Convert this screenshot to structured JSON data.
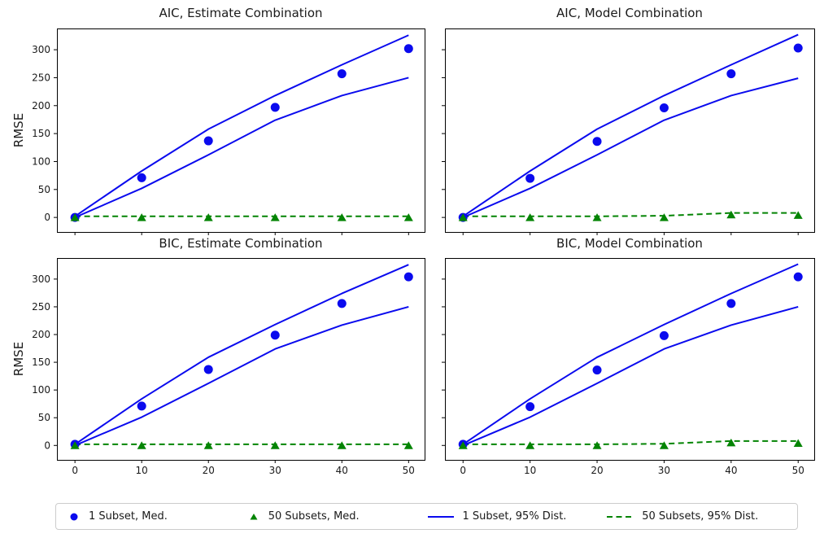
{
  "figure": {
    "background": "#ffffff"
  },
  "colors": {
    "blue": "#0a0aee",
    "green": "#048404",
    "axis": "#000000",
    "text": "#1a1a1a",
    "legend_border": "#cccccc"
  },
  "legend": {
    "position": "bottom-outside",
    "items": [
      {
        "marker": "circle",
        "color": "blue",
        "label": "1 Subset, Med."
      },
      {
        "marker": "triangle",
        "color": "green",
        "label": "50 Subsets, Med."
      },
      {
        "marker": "solid-line",
        "color": "blue",
        "label": "1 Subset, 95% Dist."
      },
      {
        "marker": "dashed-line",
        "color": "green",
        "label": "50 Subsets, 95% Dist."
      }
    ]
  },
  "chart_data": [
    {
      "type": "line",
      "title": "AIC, Estimate Combination",
      "position": "top-left",
      "ylabel": "RMSE",
      "x": [
        0,
        10,
        20,
        30,
        40,
        50
      ],
      "xticks": [
        0,
        10,
        20,
        30,
        40,
        50
      ],
      "yticks": [
        0,
        50,
        100,
        150,
        200,
        250,
        300
      ],
      "xlim": [
        -2.7,
        52.4
      ],
      "ylim": [
        -26,
        338
      ],
      "grid": false,
      "show_xticklabels": false,
      "show_yticklabels": true,
      "series": [
        {
          "name": "50 Subsets, 95% Dist.",
          "type": "line",
          "style": "dashed",
          "color": "green",
          "values": [
            2,
            2,
            2,
            2,
            2,
            2
          ]
        },
        {
          "name": "1 Subset, 95% Dist. (lower)",
          "type": "line",
          "style": "solid",
          "color": "blue",
          "values": [
            0,
            52,
            112,
            174,
            218,
            250
          ]
        },
        {
          "name": "1 Subset, 95% Dist. (upper)",
          "type": "line",
          "style": "solid",
          "color": "blue",
          "values": [
            2,
            83,
            158,
            218,
            273,
            326
          ]
        },
        {
          "name": "1 Subset, Med.",
          "type": "scatter",
          "marker": "circle",
          "color": "blue",
          "values": [
            0,
            71,
            137,
            197,
            257,
            302
          ]
        },
        {
          "name": "50 Subsets, Med.",
          "type": "scatter",
          "marker": "triangle",
          "color": "green",
          "values": [
            0,
            0,
            0,
            0,
            0,
            0
          ]
        }
      ]
    },
    {
      "type": "line",
      "title": "AIC, Model Combination",
      "position": "top-right",
      "ylabel": "",
      "x": [
        0,
        10,
        20,
        30,
        40,
        50
      ],
      "xticks": [
        0,
        10,
        20,
        30,
        40,
        50
      ],
      "yticks": [
        0,
        50,
        100,
        150,
        200,
        250,
        300
      ],
      "xlim": [
        -2.7,
        52.4
      ],
      "ylim": [
        -26,
        338
      ],
      "grid": false,
      "show_xticklabels": false,
      "show_yticklabels": false,
      "series": [
        {
          "name": "50 Subsets, 95% Dist.",
          "type": "line",
          "style": "dashed",
          "color": "green",
          "values": [
            2,
            2,
            2,
            3,
            8,
            8
          ]
        },
        {
          "name": "1 Subset, 95% Dist. (lower)",
          "type": "line",
          "style": "solid",
          "color": "blue",
          "values": [
            0,
            52,
            112,
            174,
            218,
            249
          ]
        },
        {
          "name": "1 Subset, 95% Dist. (upper)",
          "type": "line",
          "style": "solid",
          "color": "blue",
          "values": [
            2,
            83,
            158,
            218,
            273,
            327
          ]
        },
        {
          "name": "1 Subset, Med.",
          "type": "scatter",
          "marker": "circle",
          "color": "blue",
          "values": [
            0,
            70,
            136,
            196,
            257,
            303
          ]
        },
        {
          "name": "50 Subsets, Med.",
          "type": "scatter",
          "marker": "triangle",
          "color": "green",
          "values": [
            0,
            0,
            0,
            0,
            5,
            4
          ]
        }
      ]
    },
    {
      "type": "line",
      "title": "BIC, Estimate Combination",
      "position": "bottom-left",
      "ylabel": "RMSE",
      "x": [
        0,
        10,
        20,
        30,
        40,
        50
      ],
      "xticks": [
        0,
        10,
        20,
        30,
        40,
        50
      ],
      "yticks": [
        0,
        50,
        100,
        150,
        200,
        250,
        300
      ],
      "xlim": [
        -2.7,
        52.4
      ],
      "ylim": [
        -26,
        338
      ],
      "grid": false,
      "show_xticklabels": true,
      "show_yticklabels": true,
      "series": [
        {
          "name": "50 Subsets, 95% Dist.",
          "type": "line",
          "style": "dashed",
          "color": "green",
          "values": [
            2,
            2,
            2,
            2,
            2,
            2
          ]
        },
        {
          "name": "1 Subset, 95% Dist. (lower)",
          "type": "line",
          "style": "solid",
          "color": "blue",
          "values": [
            0,
            51,
            112,
            174,
            217,
            250
          ]
        },
        {
          "name": "1 Subset, 95% Dist. (upper)",
          "type": "line",
          "style": "solid",
          "color": "blue",
          "values": [
            2,
            84,
            159,
            218,
            274,
            326
          ]
        },
        {
          "name": "1 Subset, Med.",
          "type": "scatter",
          "marker": "circle",
          "color": "blue",
          "values": [
            2,
            71,
            137,
            199,
            256,
            304
          ]
        },
        {
          "name": "50 Subsets, Med.",
          "type": "scatter",
          "marker": "triangle",
          "color": "green",
          "values": [
            0,
            0,
            0,
            0,
            0,
            0
          ]
        }
      ]
    },
    {
      "type": "line",
      "title": "BIC, Model Combination",
      "position": "bottom-right",
      "ylabel": "",
      "x": [
        0,
        10,
        20,
        30,
        40,
        50
      ],
      "xticks": [
        0,
        10,
        20,
        30,
        40,
        50
      ],
      "yticks": [
        0,
        50,
        100,
        150,
        200,
        250,
        300
      ],
      "xlim": [
        -2.7,
        52.4
      ],
      "ylim": [
        -26,
        338
      ],
      "grid": false,
      "show_xticklabels": true,
      "show_yticklabels": false,
      "series": [
        {
          "name": "50 Subsets, 95% Dist.",
          "type": "line",
          "style": "dashed",
          "color": "green",
          "values": [
            2,
            2,
            2,
            3,
            8,
            8
          ]
        },
        {
          "name": "1 Subset, 95% Dist. (lower)",
          "type": "line",
          "style": "solid",
          "color": "blue",
          "values": [
            0,
            51,
            112,
            174,
            217,
            250
          ]
        },
        {
          "name": "1 Subset, 95% Dist. (upper)",
          "type": "line",
          "style": "solid",
          "color": "blue",
          "values": [
            2,
            84,
            159,
            218,
            274,
            327
          ]
        },
        {
          "name": "1 Subset, Med.",
          "type": "scatter",
          "marker": "circle",
          "color": "blue",
          "values": [
            2,
            70,
            136,
            198,
            256,
            304
          ]
        },
        {
          "name": "50 Subsets, Med.",
          "type": "scatter",
          "marker": "triangle",
          "color": "green",
          "values": [
            0,
            0,
            0,
            0,
            5,
            4
          ]
        }
      ]
    }
  ]
}
